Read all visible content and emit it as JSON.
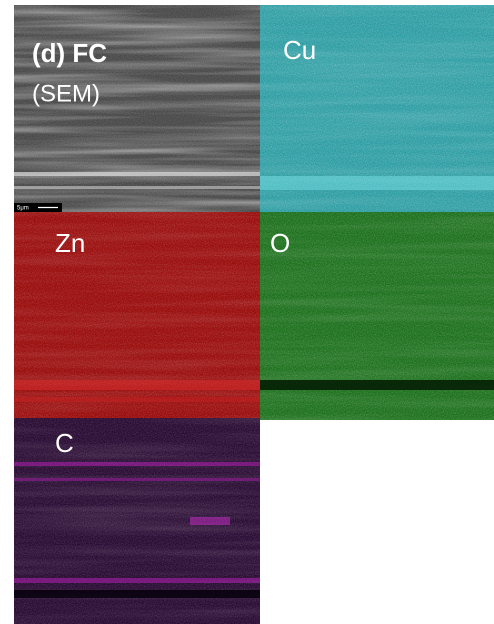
{
  "panels": [
    {
      "label": "(d) FC",
      "sublabel": "(SEM)",
      "scale_bar": "5μm"
    },
    {
      "label": "Cu"
    },
    {
      "label": "Zn"
    },
    {
      "label": "O"
    },
    {
      "label": "C"
    }
  ]
}
